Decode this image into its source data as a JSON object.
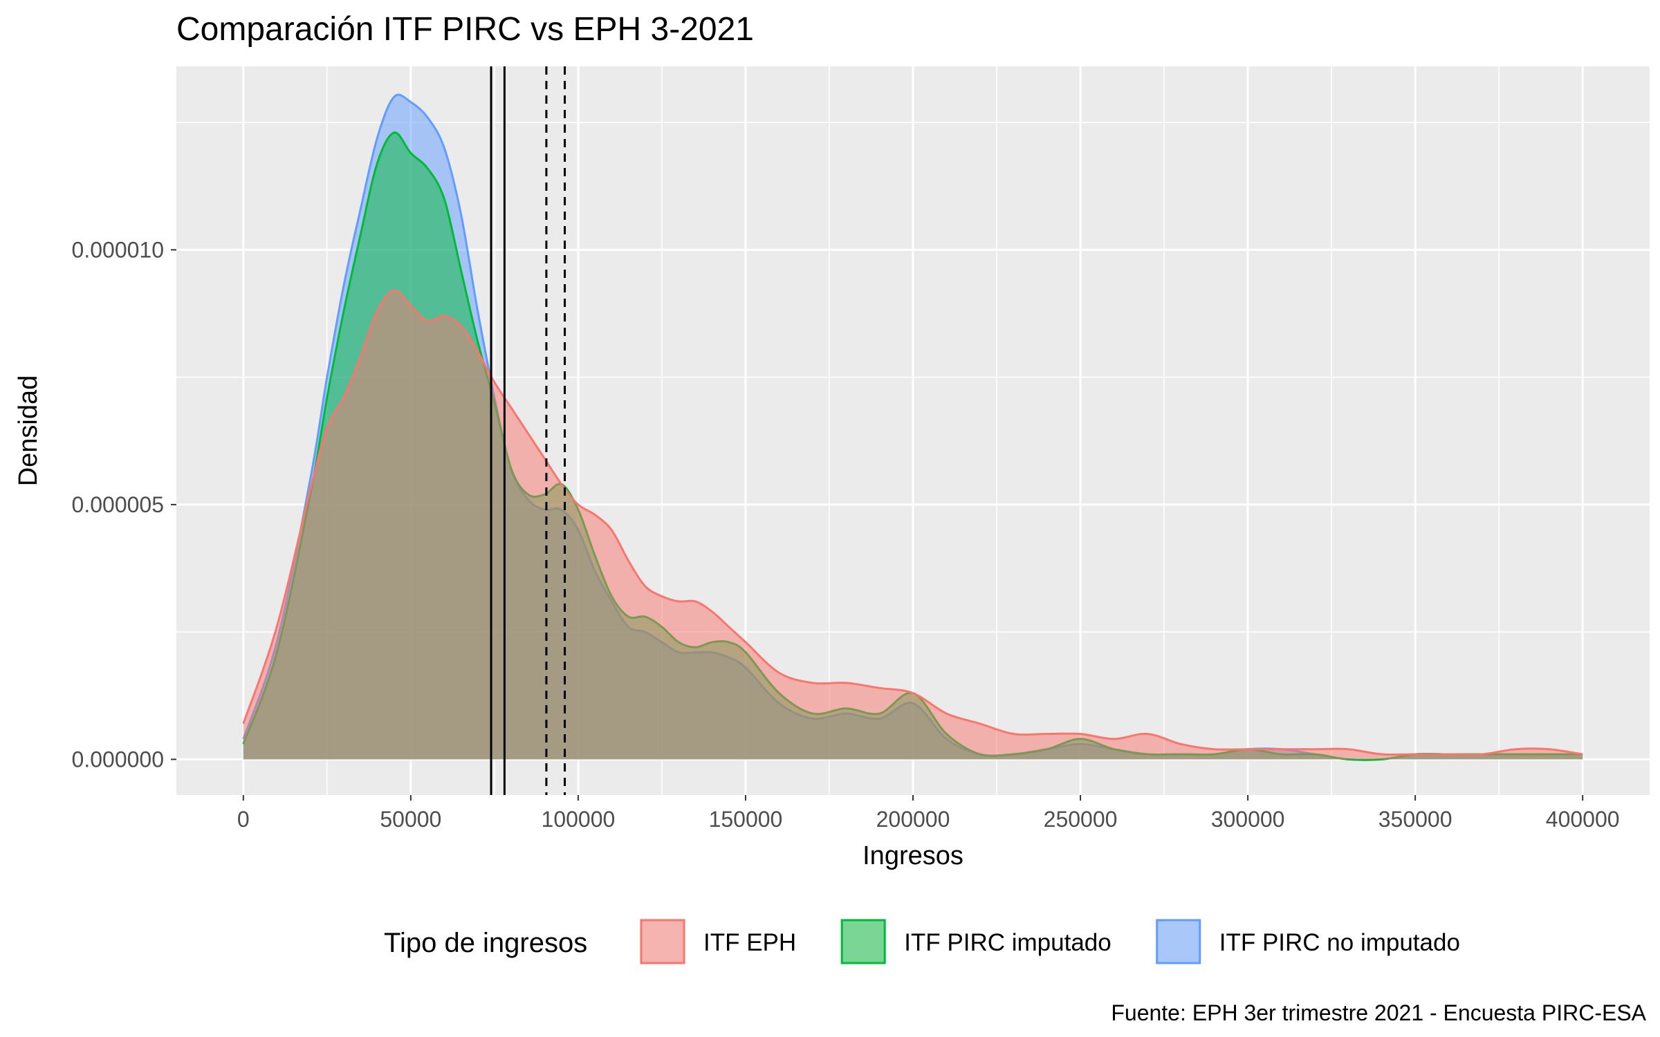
{
  "chart_data": {
    "type": "area",
    "title": "Comparación ITF PIRC vs EPH 3-2021",
    "xlabel": "Ingresos",
    "ylabel": "Densidad",
    "caption": "Fuente: EPH 3er trimestre 2021 - Encuesta PIRC-ESA",
    "xlim": [
      -20000,
      420000
    ],
    "ylim": [
      -7e-07,
      1.36e-05
    ],
    "grid": true,
    "x_ticks": [
      0,
      50000,
      100000,
      150000,
      200000,
      250000,
      300000,
      350000,
      400000
    ],
    "x_tick_labels": [
      "0",
      "50000",
      "100000",
      "150000",
      "200000",
      "250000",
      "300000",
      "350000",
      "400000"
    ],
    "y_ticks": [
      0,
      5e-06,
      1e-05
    ],
    "y_tick_labels": [
      "0.000000",
      "0.000005",
      "0.000010"
    ],
    "legend": {
      "title": "Tipo de ingresos",
      "position": "bottom",
      "items": [
        "ITF EPH",
        "ITF PIRC imputado",
        "ITF PIRC no imputado"
      ]
    },
    "series": [
      {
        "name": "ITF PIRC no imputado",
        "color": "#619CFF",
        "x": [
          0,
          10000,
          20000,
          25000,
          30000,
          35000,
          40000,
          45000,
          50000,
          55000,
          60000,
          65000,
          70000,
          75000,
          80000,
          85000,
          90000,
          95000,
          100000,
          105000,
          110000,
          115000,
          120000,
          125000,
          130000,
          135000,
          140000,
          145000,
          150000,
          160000,
          170000,
          180000,
          190000,
          200000,
          210000,
          220000,
          230000,
          240000,
          250000,
          260000,
          270000,
          280000,
          290000,
          300000,
          310000,
          320000,
          330000,
          340000,
          350000,
          360000,
          370000,
          380000,
          390000,
          400000
        ],
        "y": [
          4e-07,
          2.3e-06,
          5.5e-06,
          7.5e-06,
          9.3e-06,
          1.08e-05,
          1.22e-05,
          1.3e-05,
          1.29e-05,
          1.26e-05,
          1.2e-05,
          1.07e-05,
          8.8e-06,
          7.1e-06,
          5.7e-06,
          5.1e-06,
          4.9e-06,
          4.9e-06,
          4.5e-06,
          3.7e-06,
          3.1e-06,
          2.6e-06,
          2.5e-06,
          2.3e-06,
          2.1e-06,
          2.1e-06,
          2.1e-06,
          2e-06,
          1.8e-06,
          1.1e-06,
          8e-07,
          9e-07,
          8e-07,
          1.1e-06,
          4e-07,
          1e-07,
          1e-07,
          2e-07,
          3e-07,
          2e-07,
          1e-07,
          1e-07,
          1e-07,
          2e-07,
          2e-07,
          1e-07,
          0.0,
          0.0,
          1e-07,
          1e-07,
          1e-07,
          1e-07,
          1e-07,
          1e-07
        ]
      },
      {
        "name": "ITF PIRC imputado",
        "color": "#00BA38",
        "x": [
          0,
          10000,
          20000,
          25000,
          30000,
          35000,
          40000,
          45000,
          50000,
          55000,
          60000,
          65000,
          70000,
          75000,
          80000,
          85000,
          90000,
          95000,
          100000,
          105000,
          110000,
          115000,
          120000,
          125000,
          130000,
          135000,
          140000,
          145000,
          150000,
          160000,
          170000,
          180000,
          190000,
          200000,
          210000,
          220000,
          230000,
          240000,
          250000,
          260000,
          270000,
          280000,
          290000,
          300000,
          310000,
          320000,
          330000,
          340000,
          350000,
          360000,
          370000,
          380000,
          390000,
          400000
        ],
        "y": [
          3e-07,
          2.1e-06,
          5.2e-06,
          7.1e-06,
          8.8e-06,
          1.03e-05,
          1.17e-05,
          1.23e-05,
          1.19e-05,
          1.16e-05,
          1.1e-05,
          9.6e-06,
          8.2e-06,
          7e-06,
          5.7e-06,
          5.2e-06,
          5.2e-06,
          5.4e-06,
          4.9e-06,
          4e-06,
          3.2e-06,
          2.8e-06,
          2.8e-06,
          2.6e-06,
          2.3e-06,
          2.2e-06,
          2.3e-06,
          2.3e-06,
          2.1e-06,
          1.3e-06,
          9e-07,
          1e-06,
          9e-07,
          1.3e-06,
          5e-07,
          1e-07,
          1e-07,
          2e-07,
          4e-07,
          2e-07,
          1e-07,
          1e-07,
          1e-07,
          2e-07,
          1e-07,
          1e-07,
          0.0,
          0.0,
          1e-07,
          1e-07,
          1e-07,
          1e-07,
          1e-07,
          1e-07
        ]
      },
      {
        "name": "ITF EPH",
        "color": "#F8766D",
        "x": [
          0,
          10000,
          20000,
          25000,
          30000,
          35000,
          40000,
          45000,
          50000,
          55000,
          60000,
          65000,
          70000,
          75000,
          80000,
          85000,
          90000,
          95000,
          100000,
          105000,
          110000,
          115000,
          120000,
          125000,
          130000,
          135000,
          140000,
          145000,
          150000,
          160000,
          170000,
          180000,
          190000,
          200000,
          210000,
          220000,
          230000,
          240000,
          250000,
          260000,
          270000,
          280000,
          290000,
          300000,
          310000,
          320000,
          330000,
          340000,
          350000,
          360000,
          370000,
          380000,
          390000,
          400000
        ],
        "y": [
          7e-07,
          2.6e-06,
          5.3e-06,
          6.5e-06,
          7.1e-06,
          7.9e-06,
          8.8e-06,
          9.2e-06,
          8.9e-06,
          8.6e-06,
          8.7e-06,
          8.5e-06,
          8e-06,
          7.4e-06,
          6.9e-06,
          6.4e-06,
          5.9e-06,
          5.4e-06,
          5e-06,
          4.8e-06,
          4.5e-06,
          3.9e-06,
          3.4e-06,
          3.2e-06,
          3.1e-06,
          3.1e-06,
          2.9e-06,
          2.6e-06,
          2.3e-06,
          1.7e-06,
          1.5e-06,
          1.5e-06,
          1.4e-06,
          1.3e-06,
          9e-07,
          7e-07,
          5e-07,
          5e-07,
          5e-07,
          4e-07,
          5e-07,
          3e-07,
          2e-07,
          2e-07,
          2e-07,
          2e-07,
          2e-07,
          1e-07,
          1e-07,
          1e-07,
          1e-07,
          2e-07,
          2e-07,
          1e-07
        ]
      }
    ],
    "vlines": [
      {
        "x": 74000,
        "style": "solid"
      },
      {
        "x": 78000,
        "style": "solid"
      },
      {
        "x": 90500,
        "style": "dashed"
      },
      {
        "x": 96000,
        "style": "dashed"
      }
    ]
  }
}
